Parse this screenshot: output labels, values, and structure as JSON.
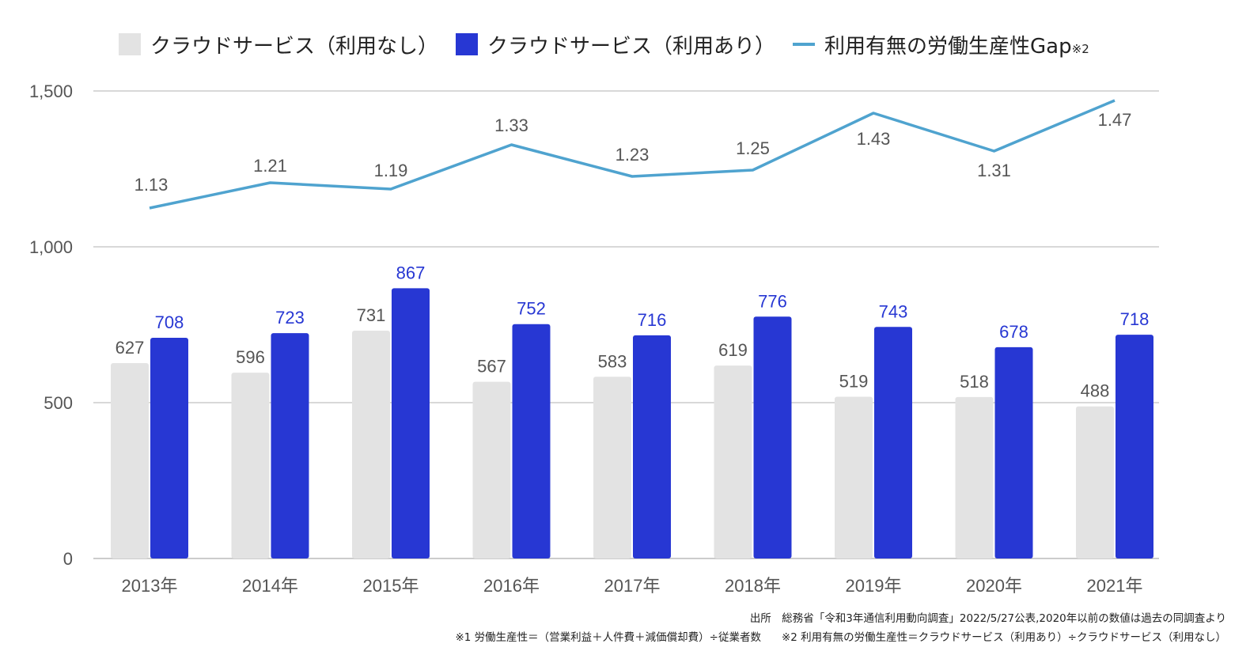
{
  "legend": {
    "series1": "クラウドサービス（利用なし）",
    "series2": "クラウドサービス（利用あり）",
    "series3": "利用有無の労働生産性Gap",
    "series3_note": "※2"
  },
  "colors": {
    "no_cloud": "#e3e3e3",
    "cloud": "#2737d3",
    "gap_line": "#4fa3cf",
    "grid": "#cccccc",
    "label_grey": "#555555"
  },
  "footnotes": {
    "source": "出所　総務省「令和3年通信利用動向調査」2022/5/27公表,2020年以前の数値は過去の同調査より",
    "note1": "※1 労働生産性＝（営業利益＋人件費＋減価償却費）÷従業者数",
    "note2": "※2 利用有無の労働生産性＝クラウドサービス（利用あり）÷クラウドサービス（利用なし）"
  },
  "chart_data": {
    "type": "bar",
    "categories": [
      "2013年",
      "2014年",
      "2015年",
      "2016年",
      "2017年",
      "2018年",
      "2019年",
      "2020年",
      "2021年"
    ],
    "series": [
      {
        "name": "クラウドサービス（利用なし）",
        "values": [
          627,
          596,
          731,
          567,
          583,
          619,
          519,
          518,
          488
        ]
      },
      {
        "name": "クラウドサービス（利用あり）",
        "values": [
          708,
          723,
          867,
          752,
          716,
          776,
          743,
          678,
          718
        ]
      }
    ],
    "line_series": {
      "name": "利用有無の労働生産性Gap",
      "values": [
        1.13,
        1.21,
        1.19,
        1.33,
        1.23,
        1.25,
        1.43,
        1.31,
        1.47
      ],
      "labels": [
        "1.13",
        "1.21",
        "1.19",
        "1.33",
        "1.23",
        "1.25",
        "1.43",
        "1.31",
        "1.47"
      ]
    },
    "yticks": [
      0,
      500,
      1000,
      1500
    ],
    "ytick_labels": [
      "0",
      "500",
      "1,000",
      "1,500"
    ],
    "ylim": [
      0,
      1500
    ],
    "grid": true,
    "legend_position": "top"
  }
}
